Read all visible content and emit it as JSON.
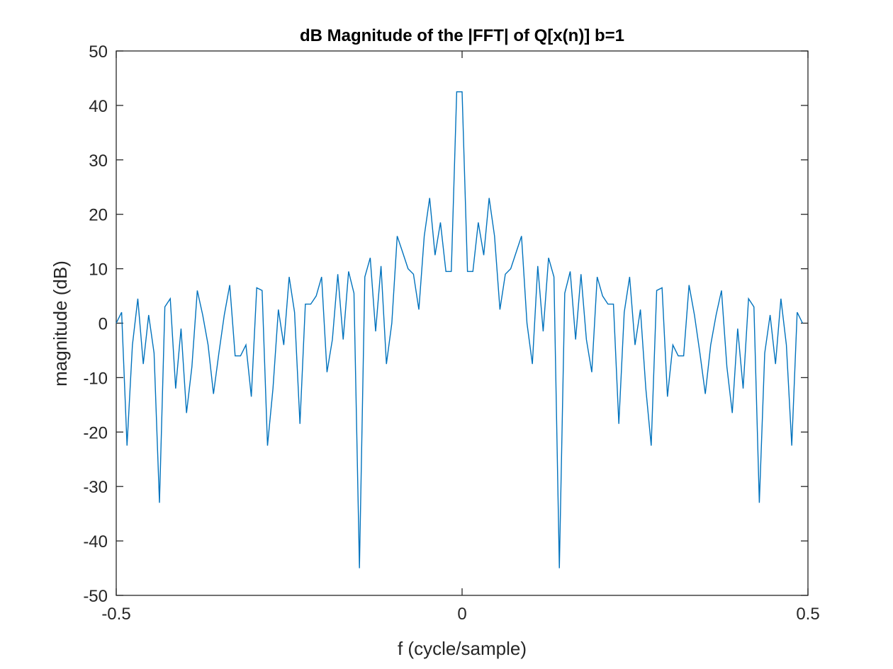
{
  "chart_data": {
    "type": "line",
    "title": "dB Magnitude of the |FFT| of Q[x(n)] b=1",
    "xlabel": "f (cycle/sample)",
    "ylabel": "magnitude (dB)",
    "xlim": [
      -0.5,
      0.5
    ],
    "ylim": [
      -50,
      50
    ],
    "xticks": [
      -0.5,
      0,
      0.5
    ],
    "xtick_labels": [
      "-0.5",
      "0",
      "0.5"
    ],
    "yticks": [
      50,
      40,
      30,
      20,
      10,
      0,
      -10,
      -20,
      -30,
      -40,
      -50
    ],
    "ytick_labels": [
      "50",
      "40",
      "30",
      "20",
      "10",
      "0",
      "-10",
      "-20",
      "-30",
      "-40",
      "-50"
    ],
    "grid": false,
    "line_color": "#0072BD",
    "series": [
      {
        "x": [
          -0.5,
          -0.4922,
          -0.4844,
          -0.4766,
          -0.4688,
          -0.4609,
          -0.4531,
          -0.4453,
          -0.4375,
          -0.4297,
          -0.4219,
          -0.4141,
          -0.4063,
          -0.3984,
          -0.3906,
          -0.3828,
          -0.375,
          -0.3672,
          -0.3594,
          -0.3516,
          -0.3438,
          -0.3359,
          -0.3281,
          -0.3203,
          -0.3125,
          -0.3047,
          -0.2969,
          -0.2891,
          -0.2813,
          -0.2734,
          -0.2656,
          -0.2578,
          -0.25,
          -0.2422,
          -0.2344,
          -0.2266,
          -0.2188,
          -0.2109,
          -0.2031,
          -0.1953,
          -0.1875,
          -0.1797,
          -0.1719,
          -0.1641,
          -0.1563,
          -0.1484,
          -0.1406,
          -0.1328,
          -0.125,
          -0.1172,
          -0.1094,
          -0.1016,
          -0.0938,
          -0.0859,
          -0.0781,
          -0.0703,
          -0.0625,
          -0.0547,
          -0.0469,
          -0.0391,
          -0.0313,
          -0.0234,
          -0.0156,
          -0.0078,
          0,
          0.0078,
          0.0156,
          0.0234,
          0.0313,
          0.0391,
          0.0469,
          0.0547,
          0.0625,
          0.0703,
          0.0781,
          0.0859,
          0.0938,
          0.1016,
          0.1094,
          0.1172,
          0.125,
          0.1328,
          0.1406,
          0.1484,
          0.1563,
          0.1641,
          0.1719,
          0.1797,
          0.1875,
          0.1953,
          0.2031,
          0.2109,
          0.2188,
          0.2266,
          0.2344,
          0.2422,
          0.25,
          0.2578,
          0.2656,
          0.2734,
          0.2813,
          0.2891,
          0.2969,
          0.3047,
          0.3125,
          0.3203,
          0.3281,
          0.3359,
          0.3438,
          0.3516,
          0.3594,
          0.3672,
          0.375,
          0.3828,
          0.3906,
          0.3984,
          0.4063,
          0.4141,
          0.4219,
          0.4297,
          0.4375,
          0.4453,
          0.4531,
          0.4609,
          0.4688,
          0.4766,
          0.4844,
          0.4922
        ],
        "values": [
          0,
          2,
          -22.5,
          -4,
          4.5,
          -7.5,
          1.5,
          -5.5,
          -33,
          3,
          4.5,
          -12,
          -1,
          -16.5,
          -8,
          6,
          1.5,
          -4,
          -13,
          -5.5,
          1.5,
          7,
          -6,
          -6,
          -4,
          -13.5,
          6.5,
          6,
          -22.5,
          -12,
          2.5,
          -4,
          8.5,
          2,
          -18.5,
          3.5,
          3.5,
          5,
          8.5,
          -9,
          -3,
          9,
          -3,
          9.5,
          5.5,
          -45,
          8.5,
          12,
          -1.5,
          10.5,
          -7.5,
          0,
          16,
          13,
          10,
          9,
          2.5,
          16,
          23,
          12.5,
          18.5,
          9.5,
          9.5,
          42.5,
          42.5,
          9.5,
          9.5,
          18.5,
          12.5,
          23,
          16,
          2.5,
          9,
          10,
          13,
          16,
          0,
          -7.5,
          10.5,
          -1.5,
          12,
          8.5,
          -45,
          5.5,
          9.5,
          -3,
          9,
          -3,
          -9,
          8.5,
          5,
          3.5,
          3.5,
          -18.5,
          2,
          8.5,
          -4,
          2.5,
          -12,
          -22.5,
          6,
          6.5,
          -13.5,
          -4,
          -6,
          -6,
          7,
          1.5,
          -5.5,
          -13,
          -4,
          1.5,
          6,
          -8,
          -16.5,
          -1,
          -12,
          4.5,
          3,
          -33,
          -5.5,
          1.5,
          -7.5,
          4.5,
          -4,
          -22.5,
          2,
          0
        ]
      }
    ]
  }
}
